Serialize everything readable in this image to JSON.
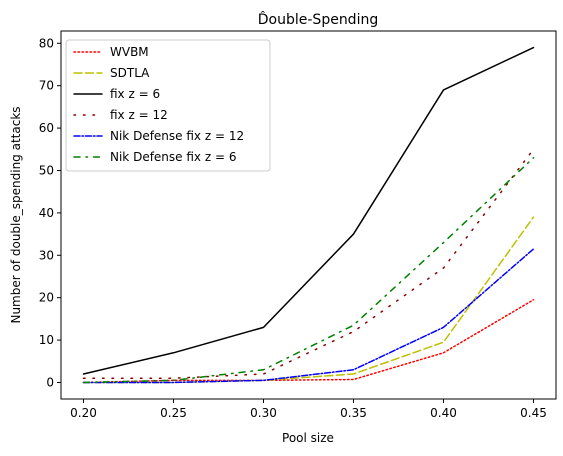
{
  "chart_data": {
    "type": "line",
    "title": "D̂ouble-Spending",
    "xlabel": "Pool size",
    "ylabel": "Number of double_spending attacks",
    "x": [
      0.2,
      0.25,
      0.3,
      0.35,
      0.4,
      0.45
    ],
    "x_tick_labels": [
      "0.20",
      "0.25",
      "0.30",
      "0.35",
      "0.40",
      "0.45"
    ],
    "y_ticks": [
      0,
      10,
      20,
      30,
      40,
      50,
      60,
      70,
      80
    ],
    "y_tick_labels": [
      "0",
      "10",
      "20",
      "30",
      "40",
      "50",
      "60",
      "70",
      "80"
    ],
    "xlim": [
      0.1875,
      0.4625
    ],
    "ylim": [
      -3.9,
      82.9
    ],
    "grid": false,
    "legend_position": "upper left",
    "series": [
      {
        "name": "WVBM",
        "values": [
          0,
          0.5,
          0.5,
          0.7,
          7,
          19.5
        ],
        "color": "#ff0000",
        "style": "dotted"
      },
      {
        "name": "SDTLA",
        "values": [
          0,
          0,
          0.5,
          2,
          9.5,
          39
        ],
        "color": "#bfbf00",
        "style": "dashed"
      },
      {
        "name": "fix z = 6",
        "values": [
          2,
          7,
          13,
          35,
          69,
          79
        ],
        "color": "#000000",
        "style": "solid"
      },
      {
        "name": "fix z = 12",
        "values": [
          1,
          1,
          2,
          12,
          27,
          55
        ],
        "color": "#8b0000",
        "style": "loosely-dotted"
      },
      {
        "name": "Nik Defense fix z = 12",
        "values": [
          0,
          0,
          0.5,
          3,
          13,
          31.5
        ],
        "color": "#0000ff",
        "style": "dashdot"
      },
      {
        "name": "Nik Defense fix z = 6",
        "values": [
          0,
          0.5,
          3,
          13.5,
          33,
          53
        ],
        "color": "#008000",
        "style": "loosely-dashdot"
      }
    ]
  }
}
